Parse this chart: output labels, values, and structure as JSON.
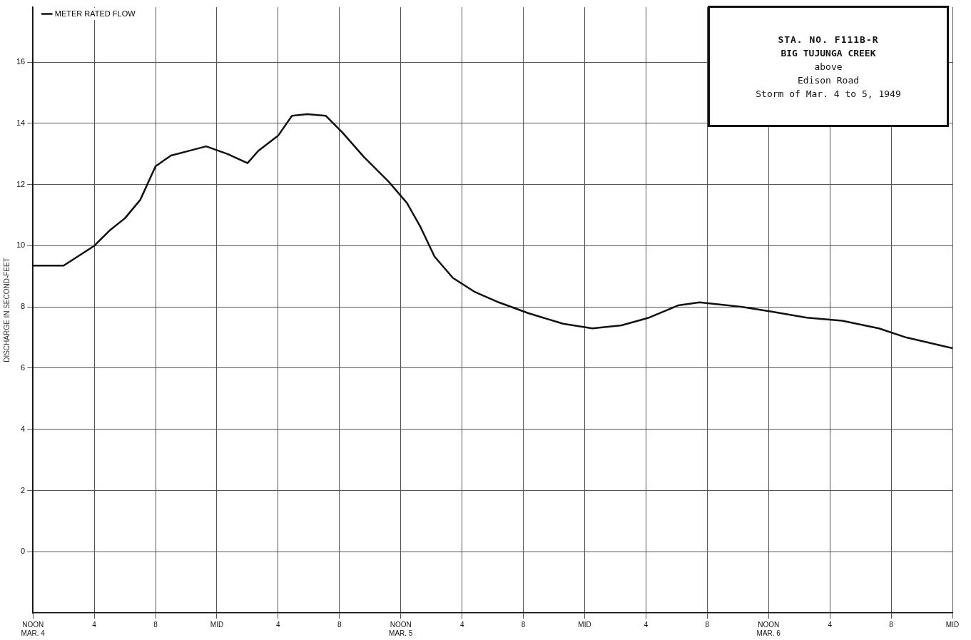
{
  "chart_data": {
    "type": "line",
    "title": "STA. NO. F111B-R",
    "subtitle": "BIG TUJUNGA CREEK",
    "annotations": [
      "above",
      "Edison Road",
      "Storm of Mar. 4 to 5, 1949"
    ],
    "ylabel": "DISCHARGE IN SECOND-FEET",
    "x": [
      "1949-03-04T12:00",
      "1949-03-04T14:00",
      "1949-03-04T16:00",
      "1949-03-04T17:00",
      "1949-03-04T18:00",
      "1949-03-04T19:00",
      "1949-03-04T20:00",
      "1949-03-04T21:00",
      "1949-03-04T23:18",
      "1949-03-05T00:42",
      "1949-03-05T02:00",
      "1949-03-05T02:42",
      "1949-03-05T04:00",
      "1949-03-05T04:54",
      "1949-03-05T05:54",
      "1949-03-05T07:06",
      "1949-03-05T08:12",
      "1949-03-05T09:36",
      "1949-03-05T11:12",
      "1949-03-05T12:24",
      "1949-03-05T13:18",
      "1949-03-05T14:12",
      "1949-03-05T15:24",
      "1949-03-05T16:48",
      "1949-03-05T18:24",
      "1949-03-05T20:18",
      "1949-03-05T22:36",
      "1949-03-06T00:30",
      "1949-03-06T02:24",
      "1949-03-06T04:12",
      "1949-03-06T06:06",
      "1949-03-06T07:30",
      "1949-03-06T10:18",
      "1949-03-06T12:12",
      "1949-03-06T14:30",
      "1949-03-06T16:48",
      "1949-03-06T19:12",
      "1949-03-06T21:00",
      "1949-03-07T00:00"
    ],
    "series": [
      {
        "name": "METER RATED FLOW",
        "color": "#111111",
        "values": [
          9.35,
          9.35,
          10.0,
          10.5,
          10.9,
          11.5,
          12.6,
          12.95,
          13.25,
          13.0,
          12.7,
          13.1,
          13.6,
          14.25,
          14.3,
          14.25,
          13.7,
          12.9,
          12.1,
          11.4,
          10.6,
          9.65,
          8.95,
          8.5,
          8.15,
          7.8,
          7.45,
          7.3,
          7.4,
          7.65,
          8.05,
          8.15,
          8.0,
          7.85,
          7.65,
          7.55,
          7.3,
          7.0,
          6.65
        ]
      }
    ],
    "xlim": [
      "1949-03-04T12:00",
      "1949-03-07T00:00"
    ],
    "xticks": [
      {
        "value": "1949-03-04T12:00",
        "label": "NOON\nMAR. 4"
      },
      {
        "value": "1949-03-04T16:00",
        "label": "4"
      },
      {
        "value": "1949-03-04T20:00",
        "label": "8"
      },
      {
        "value": "1949-03-05T00:00",
        "label": "MID"
      },
      {
        "value": "1949-03-05T04:00",
        "label": "4"
      },
      {
        "value": "1949-03-05T08:00",
        "label": "8"
      },
      {
        "value": "1949-03-05T12:00",
        "label": "NOON\nMAR. 5"
      },
      {
        "value": "1949-03-05T16:00",
        "label": "4"
      },
      {
        "value": "1949-03-05T20:00",
        "label": "8"
      },
      {
        "value": "1949-03-06T00:00",
        "label": "MID"
      },
      {
        "value": "1949-03-06T04:00",
        "label": "4"
      },
      {
        "value": "1949-03-06T08:00",
        "label": "8"
      },
      {
        "value": "1949-03-06T12:00",
        "label": "NOON\nMAR. 6"
      },
      {
        "value": "1949-03-06T16:00",
        "label": "4"
      },
      {
        "value": "1949-03-06T20:00",
        "label": "8"
      },
      {
        "value": "1949-03-07T00:00",
        "label": "MID"
      }
    ],
    "ylim": [
      -2,
      17.8
    ],
    "yticks": [
      0,
      2,
      4,
      6,
      8,
      10,
      12,
      14,
      16
    ],
    "grid": true,
    "legend": "top left",
    "marker": "none",
    "line_style": "solid"
  }
}
